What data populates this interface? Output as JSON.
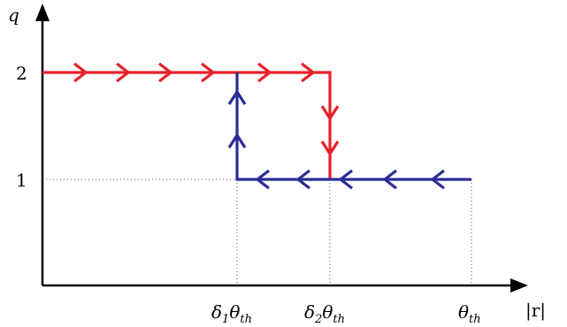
{
  "axes": {
    "y_label": "q",
    "x_label": "|r|",
    "y_ticks": [
      "2",
      "1"
    ]
  },
  "x_ticks": [
    {
      "sym": "δ",
      "num": "1",
      "theta": "θ",
      "sub": "th"
    },
    {
      "sym": "δ",
      "num": "2",
      "theta": "θ",
      "sub": "th"
    },
    {
      "sym": "",
      "num": "",
      "theta": "θ",
      "sub": "th"
    }
  ],
  "colors": {
    "upper_path": "#e8202a",
    "lower_path": "#2b2d96",
    "axis": "#000000",
    "guide": "#555555"
  }
}
